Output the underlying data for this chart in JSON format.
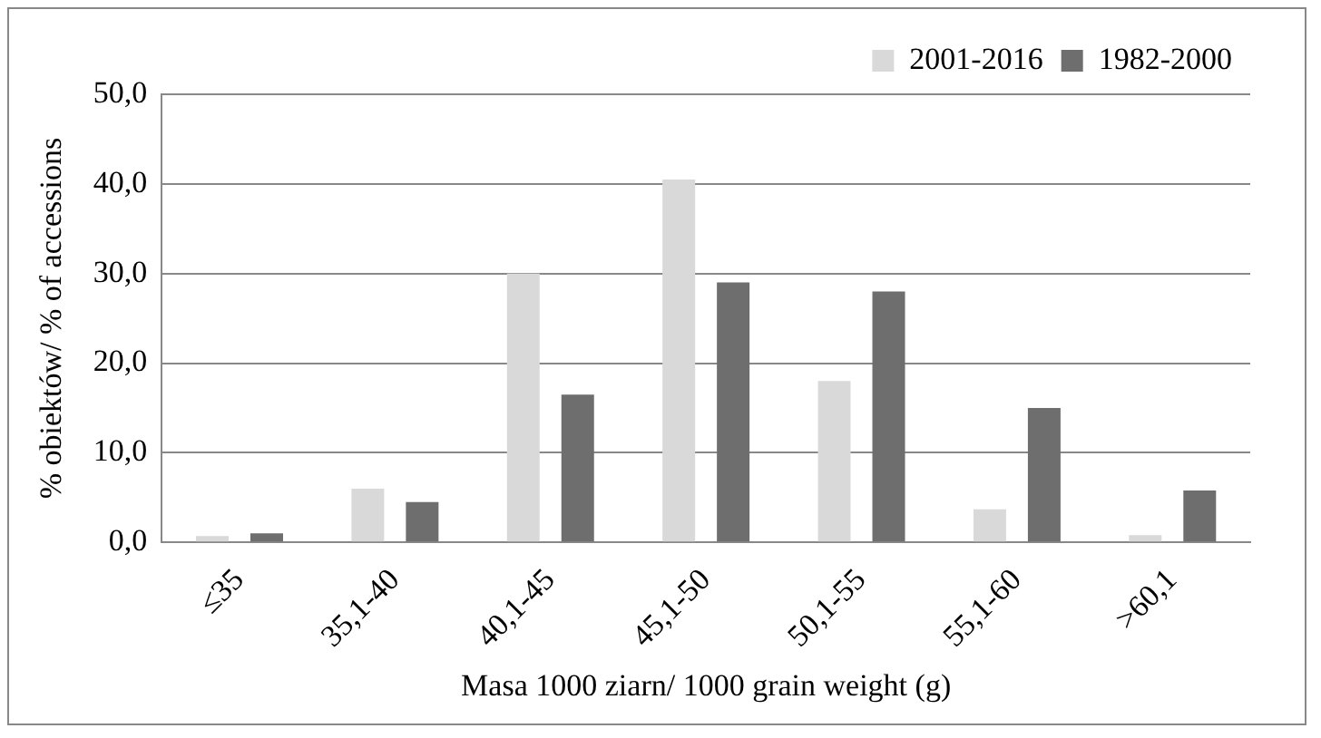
{
  "chart_data": {
    "type": "bar",
    "xlabel": "Masa 1000 ziarn/ 1000 grain weight (g)",
    "ylabel": "% obiektów/ % of accessions",
    "categories": [
      "≤35",
      "35,1-40",
      "40,1-45",
      "45,1-50",
      "50,1-55",
      "55,1-60",
      ">60,1"
    ],
    "series": [
      {
        "name": "2001-2016",
        "color": "#d9d9d9",
        "values": [
          0.7,
          6.0,
          30.0,
          40.5,
          18.0,
          3.7,
          0.8
        ]
      },
      {
        "name": "1982-2000",
        "color": "#6e6e6e",
        "values": [
          1.0,
          4.5,
          16.5,
          29.0,
          28.0,
          15.0,
          5.8
        ]
      }
    ],
    "ylim": [
      0,
      50
    ],
    "yticks": [
      {
        "value": 0,
        "label": "0,0"
      },
      {
        "value": 10,
        "label": "10,0"
      },
      {
        "value": 20,
        "label": "20,0"
      },
      {
        "value": 30,
        "label": "30,0"
      },
      {
        "value": 40,
        "label": "40,0"
      },
      {
        "value": 50,
        "label": "50,0"
      }
    ],
    "grid": "y",
    "legend": "top right"
  }
}
